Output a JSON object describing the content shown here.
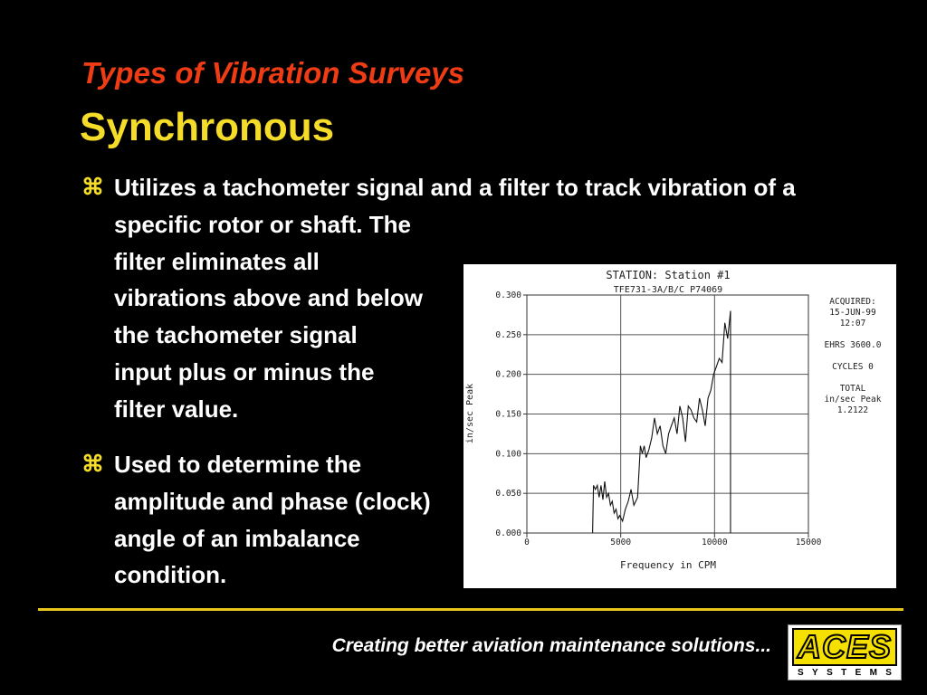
{
  "slide": {
    "title": "Types of Vibration Surveys",
    "subtitle": "Synchronous",
    "bullet_symbol": "⌘",
    "bullets": [
      {
        "lines": [
          "Utilizes a tachometer signal and a filter to track vibration of a",
          "specific rotor or shaft. The",
          "filter eliminates all",
          "vibrations above and below",
          "the tachometer signal",
          "input plus or minus the",
          "filter value."
        ]
      },
      {
        "lines": [
          "Used to determine the",
          "amplitude and phase (clock)",
          "angle of an imbalance",
          "condition."
        ]
      }
    ],
    "tagline": "Creating better aviation maintenance solutions...",
    "logo": {
      "word": "ACES",
      "sub": [
        "S",
        "Y",
        "S",
        "T",
        "E",
        "M",
        "S"
      ]
    },
    "colors": {
      "title": "#f03c14",
      "subtitle": "#f5dc28",
      "divider": "#e8c81e",
      "logo_yellow": "#f5e000"
    }
  },
  "chart_data": {
    "type": "line",
    "title": "STATION: Station #1",
    "subtitle": "TFE731-3A/B/C P74069",
    "xlabel": "Frequency in CPM",
    "ylabel": "in/sec Peak",
    "xlim": [
      0,
      15000
    ],
    "ylim": [
      0,
      0.3
    ],
    "xticks": [
      0,
      5000,
      10000,
      15000
    ],
    "yticks": [
      "0.000",
      "0.050",
      "0.100",
      "0.150",
      "0.200",
      "0.250",
      "0.300"
    ],
    "grid": true,
    "info": [
      "ACQUIRED:",
      "15-JUN-99",
      "12:07",
      "",
      "EHRS 3600.0",
      "",
      "CYCLES 0",
      "",
      "TOTAL",
      "in/sec Peak",
      "1.2122"
    ],
    "series": [
      {
        "x": [
          3500,
          3550,
          3650,
          3750,
          3850,
          3950,
          4050,
          4150,
          4250,
          4350,
          4450,
          4550,
          4650,
          4750,
          4850,
          4950,
          5100,
          5250,
          5400,
          5550,
          5700,
          5900,
          6050,
          6150,
          6250,
          6350,
          6500,
          6650,
          6800,
          6950,
          7100,
          7250,
          7400,
          7550,
          7700,
          7850,
          8000,
          8150,
          8300,
          8450,
          8600,
          8750,
          8900,
          9050,
          9200,
          9350,
          9500,
          9650,
          9800,
          9950,
          10100,
          10250,
          10400,
          10550,
          10700,
          10850
        ],
        "y": [
          0.0,
          0.06,
          0.055,
          0.06,
          0.045,
          0.06,
          0.042,
          0.065,
          0.045,
          0.05,
          0.035,
          0.04,
          0.025,
          0.03,
          0.018,
          0.022,
          0.015,
          0.03,
          0.04,
          0.055,
          0.035,
          0.045,
          0.11,
          0.1,
          0.11,
          0.095,
          0.105,
          0.12,
          0.145,
          0.125,
          0.135,
          0.11,
          0.1,
          0.125,
          0.135,
          0.145,
          0.125,
          0.16,
          0.145,
          0.115,
          0.16,
          0.155,
          0.145,
          0.14,
          0.17,
          0.155,
          0.135,
          0.17,
          0.18,
          0.2,
          0.21,
          0.22,
          0.215,
          0.265,
          0.245,
          0.28
        ]
      }
    ]
  }
}
